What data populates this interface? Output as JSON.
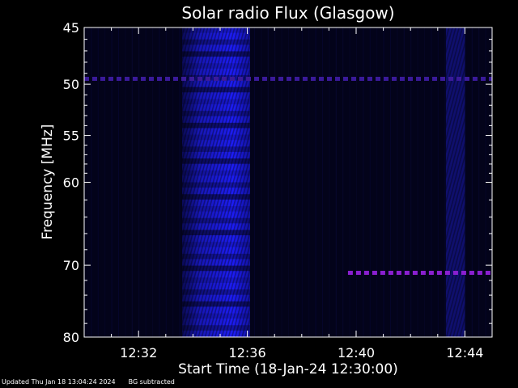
{
  "chart_data": {
    "type": "heatmap",
    "title": "Solar radio Flux (Glasgow)",
    "xlabel": "Start Time (18-Jan-24 12:30:00)",
    "ylabel": "Frequency [MHz]",
    "x_unit": "minutes after 12:30:00",
    "xlim": [
      0,
      15
    ],
    "ylim": [
      45,
      80
    ],
    "yscale": "log",
    "x_ticks": [
      {
        "value": 2,
        "label": "12:32"
      },
      {
        "value": 6,
        "label": "12:36"
      },
      {
        "value": 10,
        "label": "12:40"
      },
      {
        "value": 14,
        "label": "12:44"
      }
    ],
    "y_ticks": [
      {
        "value": 45,
        "label": "45"
      },
      {
        "value": 50,
        "label": "50"
      },
      {
        "value": 55,
        "label": "55"
      },
      {
        "value": 60,
        "label": "60"
      },
      {
        "value": 70,
        "label": "70"
      },
      {
        "value": 80,
        "label": "80"
      }
    ],
    "background_color": "#03031a",
    "emission_color": "#1e1eff",
    "interference_color": "#8a1fd0",
    "emission_regions": [
      {
        "t_start": 3.6,
        "t_end": 6.1,
        "f_min": 45,
        "f_max": 80,
        "intensity": "strong"
      },
      {
        "t_start": 13.3,
        "t_end": 14.0,
        "f_min": 45,
        "f_max": 80,
        "intensity": "weak"
      }
    ],
    "interference_lines": [
      {
        "freq_mhz": 49.5,
        "t_start": 0.0,
        "t_end": 15.0,
        "color": "#3a1a9a"
      },
      {
        "freq_mhz": 71.0,
        "t_start": 9.7,
        "t_end": 15.0,
        "color": "#8a1fd0"
      }
    ]
  },
  "footer": {
    "updated": "Updated Thu Jan 18 13:04:24 2024",
    "note": "BG subtracted"
  }
}
